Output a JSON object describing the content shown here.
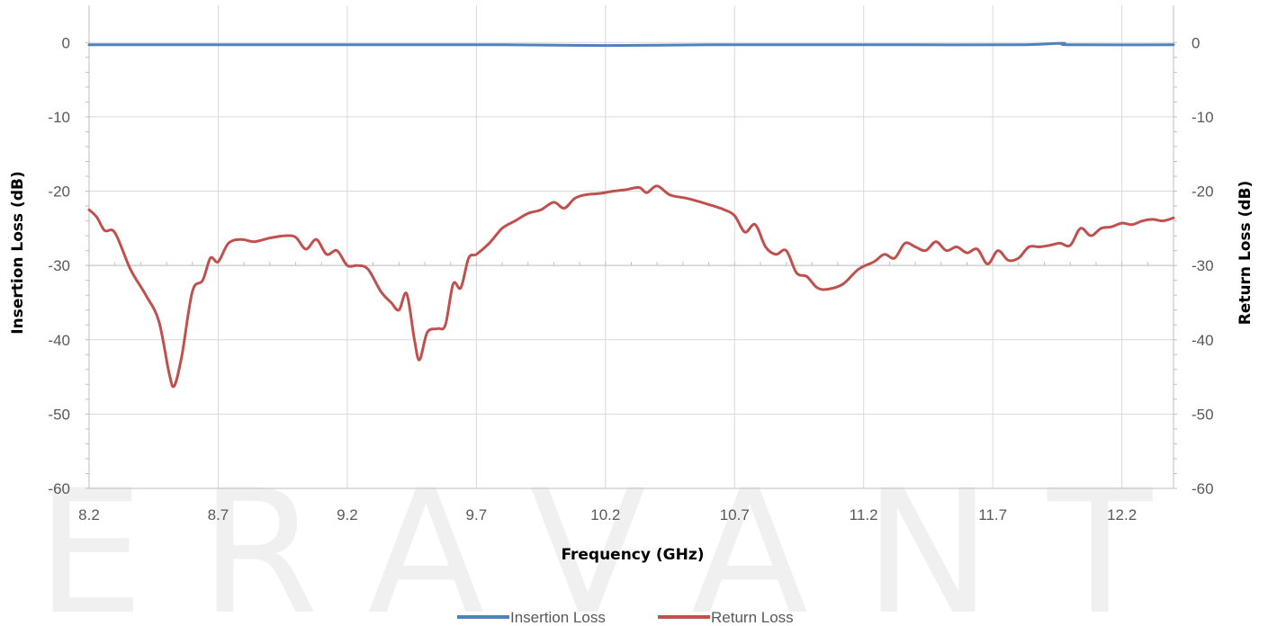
{
  "watermark": "ERAVANT",
  "chart_data": {
    "type": "line",
    "xlabel": "Frequency (GHz)",
    "ylabel_left": "Insertion Loss (dB)",
    "ylabel_right": "Return Loss (dB)",
    "xlim": [
      8.2,
      12.4
    ],
    "ylim": [
      -60,
      5
    ],
    "x_ticks": [
      "8.2",
      "8.7",
      "9.2",
      "9.7",
      "10.2",
      "10.7",
      "11.2",
      "11.7",
      "12.2"
    ],
    "y_ticks": [
      "0",
      "-10",
      "-20",
      "-30",
      "-40",
      "-50",
      "-60"
    ],
    "grid": true,
    "legend_position": "bottom",
    "series": [
      {
        "name": "Insertion Loss",
        "color": "#4f81bd",
        "points": [
          [
            8.2,
            -0.3
          ],
          [
            8.6,
            -0.3
          ],
          [
            9.0,
            -0.3
          ],
          [
            9.4,
            -0.3
          ],
          [
            9.8,
            -0.3
          ],
          [
            10.2,
            -0.4
          ],
          [
            10.6,
            -0.3
          ],
          [
            11.0,
            -0.3
          ],
          [
            11.4,
            -0.3
          ],
          [
            11.8,
            -0.3
          ],
          [
            11.97,
            -0.1
          ],
          [
            12.0,
            -0.3
          ],
          [
            12.4,
            -0.3
          ]
        ]
      },
      {
        "name": "Return Loss",
        "color": "#c0504d",
        "points": [
          [
            8.2,
            -22.5
          ],
          [
            8.23,
            -23.5
          ],
          [
            8.26,
            -25.3
          ],
          [
            8.3,
            -25.6
          ],
          [
            8.36,
            -30.5
          ],
          [
            8.42,
            -34.0
          ],
          [
            8.47,
            -37.5
          ],
          [
            8.51,
            -44.5
          ],
          [
            8.53,
            -46.2
          ],
          [
            8.56,
            -42.0
          ],
          [
            8.6,
            -33.5
          ],
          [
            8.64,
            -32.0
          ],
          [
            8.67,
            -29.0
          ],
          [
            8.7,
            -29.5
          ],
          [
            8.74,
            -27.0
          ],
          [
            8.79,
            -26.5
          ],
          [
            8.84,
            -26.8
          ],
          [
            8.9,
            -26.3
          ],
          [
            8.96,
            -26.0
          ],
          [
            9.0,
            -26.2
          ],
          [
            9.04,
            -27.8
          ],
          [
            9.08,
            -26.5
          ],
          [
            9.12,
            -28.5
          ],
          [
            9.16,
            -28.0
          ],
          [
            9.2,
            -30.0
          ],
          [
            9.24,
            -30.0
          ],
          [
            9.28,
            -30.5
          ],
          [
            9.33,
            -33.5
          ],
          [
            9.37,
            -35.0
          ],
          [
            9.4,
            -36.0
          ],
          [
            9.43,
            -33.8
          ],
          [
            9.46,
            -40.0
          ],
          [
            9.48,
            -42.7
          ],
          [
            9.51,
            -39.0
          ],
          [
            9.55,
            -38.5
          ],
          [
            9.58,
            -38.0
          ],
          [
            9.61,
            -32.5
          ],
          [
            9.64,
            -33.0
          ],
          [
            9.67,
            -29.0
          ],
          [
            9.7,
            -28.5
          ],
          [
            9.75,
            -27.0
          ],
          [
            9.8,
            -25.0
          ],
          [
            9.85,
            -24.0
          ],
          [
            9.9,
            -23.0
          ],
          [
            9.95,
            -22.5
          ],
          [
            10.0,
            -21.5
          ],
          [
            10.04,
            -22.3
          ],
          [
            10.08,
            -21.0
          ],
          [
            10.12,
            -20.5
          ],
          [
            10.18,
            -20.3
          ],
          [
            10.23,
            -20.0
          ],
          [
            10.28,
            -19.8
          ],
          [
            10.33,
            -19.5
          ],
          [
            10.36,
            -20.2
          ],
          [
            10.4,
            -19.3
          ],
          [
            10.45,
            -20.5
          ],
          [
            10.52,
            -21.0
          ],
          [
            10.6,
            -21.8
          ],
          [
            10.66,
            -22.5
          ],
          [
            10.7,
            -23.3
          ],
          [
            10.74,
            -25.5
          ],
          [
            10.78,
            -24.5
          ],
          [
            10.82,
            -27.5
          ],
          [
            10.86,
            -28.5
          ],
          [
            10.9,
            -28.0
          ],
          [
            10.94,
            -31.0
          ],
          [
            10.98,
            -31.5
          ],
          [
            11.02,
            -33.0
          ],
          [
            11.06,
            -33.2
          ],
          [
            11.12,
            -32.5
          ],
          [
            11.18,
            -30.5
          ],
          [
            11.24,
            -29.5
          ],
          [
            11.28,
            -28.5
          ],
          [
            11.32,
            -29.0
          ],
          [
            11.36,
            -27.0
          ],
          [
            11.4,
            -27.5
          ],
          [
            11.44,
            -28.0
          ],
          [
            11.48,
            -26.8
          ],
          [
            11.52,
            -28.0
          ],
          [
            11.56,
            -27.5
          ],
          [
            11.6,
            -28.3
          ],
          [
            11.64,
            -27.8
          ],
          [
            11.68,
            -29.8
          ],
          [
            11.72,
            -28.0
          ],
          [
            11.76,
            -29.3
          ],
          [
            11.8,
            -29.0
          ],
          [
            11.84,
            -27.5
          ],
          [
            11.88,
            -27.5
          ],
          [
            11.92,
            -27.3
          ],
          [
            11.96,
            -27.0
          ],
          [
            12.0,
            -27.3
          ],
          [
            12.04,
            -25.0
          ],
          [
            12.08,
            -26.0
          ],
          [
            12.12,
            -25.0
          ],
          [
            12.16,
            -24.8
          ],
          [
            12.2,
            -24.3
          ],
          [
            12.24,
            -24.5
          ],
          [
            12.28,
            -24.0
          ],
          [
            12.32,
            -23.8
          ],
          [
            12.36,
            -24.0
          ],
          [
            12.4,
            -23.6
          ]
        ]
      }
    ]
  }
}
